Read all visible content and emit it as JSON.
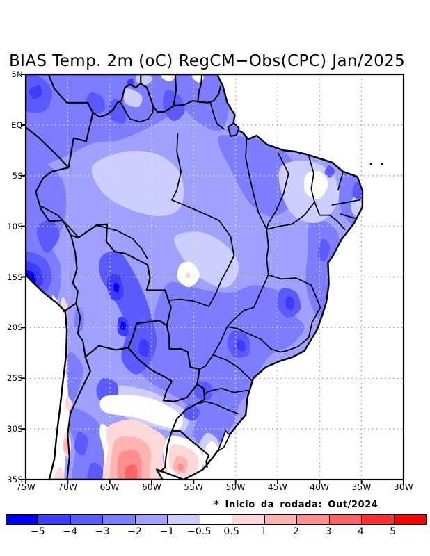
{
  "title": "BIAS Temp. 2m (oC) RegCM−Obs(CPC) Jan/2025",
  "annotation": "* Inicio da rodada: Out/2024",
  "axes": {
    "lat": {
      "labels": [
        "5N",
        "EQ",
        "5S",
        "10S",
        "15S",
        "20S",
        "25S",
        "30S",
        "35S"
      ],
      "values": [
        5,
        0,
        -5,
        -10,
        -15,
        -20,
        -25,
        -30,
        -35
      ]
    },
    "lon": {
      "labels": [
        "75W",
        "70W",
        "65W",
        "60W",
        "55W",
        "50W",
        "45W",
        "40W",
        "35W",
        "30W"
      ],
      "values": [
        75,
        70,
        65,
        60,
        55,
        50,
        45,
        40,
        35,
        30
      ]
    }
  },
  "colorbar": {
    "labels": [
      "−5",
      "−4",
      "−3",
      "−2",
      "−1",
      "−0.5",
      "0.5",
      "1",
      "2",
      "3",
      "4",
      "5"
    ],
    "colors": [
      "#0000ff",
      "#3c3cff",
      "#5a5aff",
      "#7d7dff",
      "#a0a0ff",
      "#cdcdff",
      "#ffffff",
      "#ffd9d9",
      "#ffb2b2",
      "#ff8f8f",
      "#ff6363",
      "#ff3030",
      "#ff0000"
    ]
  },
  "map": {
    "ocean_color": "#ffffff",
    "grid_color_ocean": "#9a9a9a",
    "grid_color_land": "#e8e6c2",
    "border_color": "#000000",
    "land_fill_level": 4
  },
  "chart_data": {
    "type": "filled_contour_map",
    "title": "BIAS Temp. 2m (oC) RegCM−Obs(CPC) Jan/2025",
    "variable": "2 m air temperature bias (model minus observation)",
    "model": "RegCM",
    "observation": "CPC",
    "valid_month": "Jan/2025",
    "run_start": "Out/2024",
    "units": "oC",
    "lon_range": [
      "75W",
      "30W"
    ],
    "lat_range": [
      "35S",
      "5N"
    ],
    "grid_spacing_deg": 5,
    "contour_levels": [
      -5,
      -4,
      -3,
      -2,
      -1,
      -0.5,
      0.5,
      1,
      2,
      3,
      4,
      5
    ],
    "palette": [
      "#0000ff",
      "#3c3cff",
      "#5a5aff",
      "#7d7dff",
      "#a0a0ff",
      "#cdcdff",
      "#ffffff",
      "#ffd9d9",
      "#ffb2b2",
      "#ff8f8f",
      "#ff6363",
      "#ff3030",
      "#ff0000"
    ],
    "ocean": "masked (white)",
    "regions": [
      {
        "area": "Most of Brazil (Amazon basin, Center-West, Southeast)",
        "bias_oC": "-3 to -1"
      },
      {
        "area": "Northwest corner (Colombia/Venezuela sector, 75-60W north of EQ)",
        "bias_oC": "-4 to -2"
      },
      {
        "area": "Coastal SW Peru near 74W,15S",
        "bias_oC": "below -5"
      },
      {
        "area": "Bolivia to N Paraguay band (66-60W, 13-24S)",
        "bias_oC": "-5 to -3"
      },
      {
        "area": "Minas Gerais and Sao Paulo cores (44W,18S and 49W,22S)",
        "bias_oC": "-5 to -3"
      },
      {
        "area": "Central spot near 55W,14.5S",
        "bias_oC": "-0.5 to +0.5"
      },
      {
        "area": "Northeast interior near 40W,5.5S",
        "bias_oC": "-0.5 to +0.5"
      },
      {
        "area": "Band 64-55W, 26-30S (N Argentina / S Paraguay)",
        "bias_oC": "-0.5 to +0.5"
      },
      {
        "area": "Central-east Argentina 64-58W, 30-35S",
        "bias_oC": "+1 to +4"
      },
      {
        "area": "Uruguay 57-55W, 31-35S",
        "bias_oC": "+0.5 to +3"
      },
      {
        "area": "Andes/Chile strip 71-69W, 17-35S",
        "bias_oC": "+0.5 to +2"
      }
    ]
  }
}
